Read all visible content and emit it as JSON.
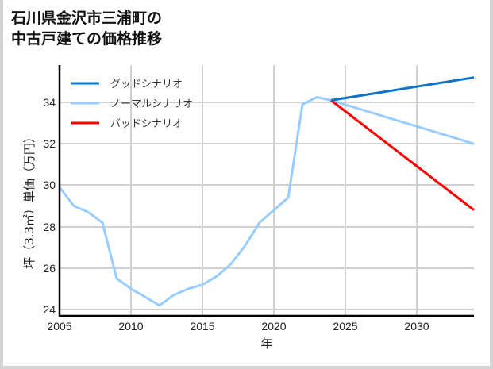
{
  "title_lines": [
    "石川県金沢市三浦町の",
    "中古戸建ての価格推移"
  ],
  "colors": {
    "good": "#0a72c8",
    "normal": "#99ccff",
    "bad": "#ff0000",
    "grid": "#d0d0d0",
    "axis": "#000000"
  },
  "chart_data": {
    "type": "line",
    "title": "石川県金沢市三浦町の中古戸建ての価格推移",
    "xlabel": "年",
    "ylabel": "坪（3.3㎡）単価（万円）",
    "xlim": [
      2005,
      2034
    ],
    "ylim": [
      23.7,
      35.8
    ],
    "x_ticks": [
      2005,
      2010,
      2015,
      2020,
      2025,
      2030
    ],
    "y_ticks": [
      24,
      26,
      28,
      30,
      32,
      34
    ],
    "grid": true,
    "legend_position": "upper left",
    "series": [
      {
        "name": "グッドシナリオ",
        "color": "#0a72c8",
        "x": [
          2024,
          2034
        ],
        "values": [
          34.1,
          35.2
        ]
      },
      {
        "name": "ノーマルシナリオ",
        "color": "#99ccff",
        "x": [
          2005,
          2006,
          2007,
          2008,
          2009,
          2010,
          2011,
          2012,
          2013,
          2014,
          2015,
          2016,
          2017,
          2018,
          2019,
          2020,
          2021,
          2022,
          2023,
          2024,
          2034
        ],
        "values": [
          29.9,
          29.0,
          28.7,
          28.2,
          25.5,
          25.0,
          24.6,
          24.2,
          24.7,
          25.0,
          25.2,
          25.6,
          26.2,
          27.1,
          28.2,
          28.8,
          29.4,
          33.9,
          34.25,
          34.1,
          32.0
        ]
      },
      {
        "name": "バッドシナリオ",
        "color": "#ff0000",
        "x": [
          2024,
          2034
        ],
        "values": [
          34.1,
          28.8
        ]
      }
    ]
  },
  "legend": {
    "good": "グッドシナリオ",
    "normal": "ノーマルシナリオ",
    "bad": "バッドシナリオ"
  },
  "axes": {
    "xlabel": "年",
    "ylabel": "坪（3.3㎡）単価（万円）",
    "x_ticks": [
      "2005",
      "2010",
      "2015",
      "2020",
      "2025",
      "2030"
    ],
    "y_ticks": [
      "24",
      "26",
      "28",
      "30",
      "32",
      "34"
    ]
  }
}
